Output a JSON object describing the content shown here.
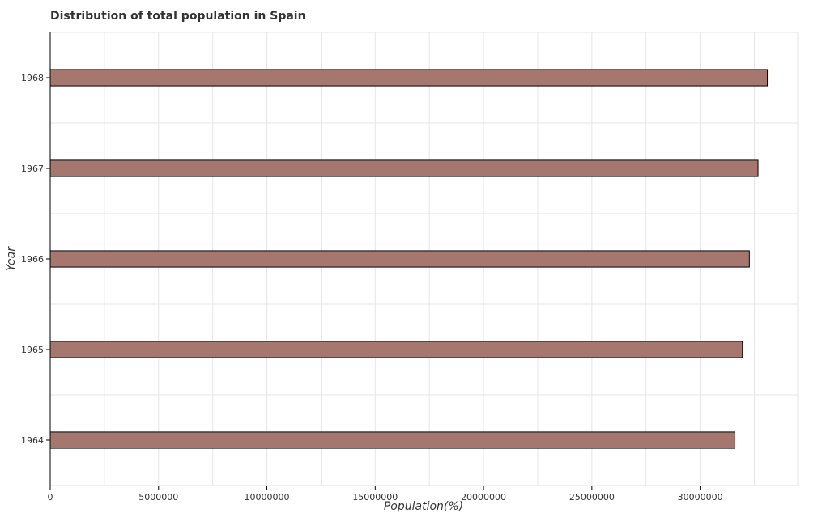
{
  "chart_data": {
    "type": "bar",
    "orientation": "horizontal",
    "title": "Distribution of total population in Spain",
    "xlabel": "Population(%)",
    "ylabel": "Year",
    "categories": [
      "1964",
      "1965",
      "1966",
      "1967",
      "1968"
    ],
    "values": [
      31600000,
      31950000,
      32270000,
      32670000,
      33100000
    ],
    "xlim": [
      0,
      34500000
    ],
    "xticks": [
      0,
      5000000,
      10000000,
      15000000,
      20000000,
      25000000,
      30000000
    ],
    "xtick_labels": [
      "0",
      "5000000",
      "10000000",
      "15000000",
      "20000000",
      "25000000",
      "30000000"
    ],
    "grid": true,
    "bar_color": "#a5776e"
  }
}
